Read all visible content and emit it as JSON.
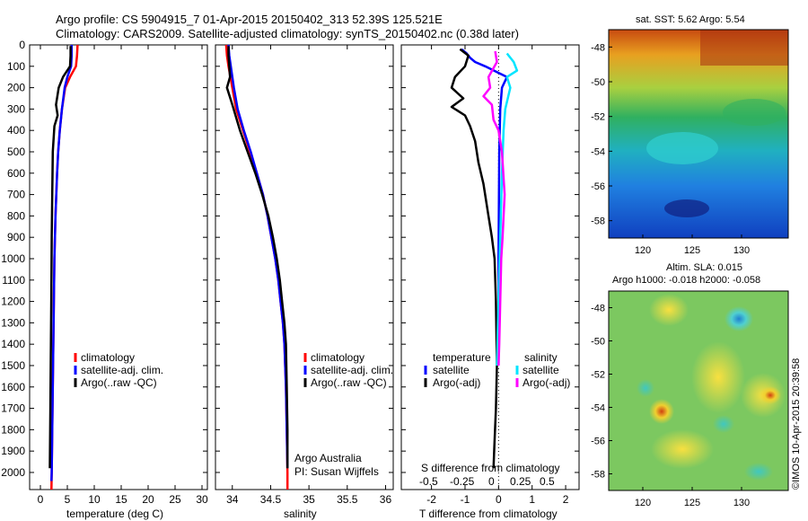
{
  "header": {
    "line1": "Argo profile: CS 5904915_7 01-Apr-2015 20150402_313 52.39S 125.521E",
    "line2": "Climatology: CARS2009. Satellite-adjusted climatology: synTS_20150402.nc (0.38d later)"
  },
  "colors": {
    "climatology": "#ff0000",
    "satellite": "#0000ff",
    "argo": "#000000",
    "argo_s_diff": "#ff00ff",
    "sat_s_diff": "#00e5ff"
  },
  "depth_axis": {
    "ylim": [
      0,
      2080
    ],
    "ticks": [
      0,
      100,
      200,
      300,
      400,
      500,
      600,
      700,
      800,
      900,
      1000,
      1100,
      1200,
      1300,
      1400,
      1500,
      1600,
      1700,
      1800,
      1900,
      2000
    ]
  },
  "panels": {
    "temperature": {
      "xlabel": "temperature (deg C)",
      "xlim": [
        -2,
        31
      ],
      "xticks": [
        0,
        5,
        10,
        15,
        20,
        25,
        30
      ],
      "legend": [
        "climatology",
        "satellite-adj. clim.",
        "Argo(..raw -QC)"
      ]
    },
    "salinity": {
      "xlabel": "salinity",
      "xlim": [
        33.78,
        36.1
      ],
      "xticks": [
        "34",
        "34.5",
        "35",
        "35.5",
        "36"
      ],
      "legend": [
        "climatology",
        "satellite-adj. clim.",
        "Argo(..raw -QC)"
      ],
      "note1": "Argo Australia",
      "note2": "PI: Susan Wijffels"
    },
    "difference": {
      "xlabel": "T difference from climatology",
      "xlim": [
        -2.9,
        2.4
      ],
      "xticks": [
        "-2",
        "-1",
        "0",
        "1",
        "2"
      ],
      "s_label": "S difference from climatology",
      "s_ticks": [
        "-0.5",
        "-0.25",
        "0",
        "0.25",
        "0.5"
      ],
      "legend_t_title": "temperature",
      "legend_t_items": [
        "satellite",
        "Argo(-adj)"
      ],
      "legend_s_title": "salinity",
      "legend_s_items": [
        "satellite",
        "Argo(-adj)"
      ]
    }
  },
  "maps": {
    "sst": {
      "title": "sat. SST: 5.62 Argo: 5.54",
      "yticks": [
        "-48",
        "-50",
        "-52",
        "-54",
        "-56",
        "-58"
      ],
      "xticks": [
        "120",
        "125",
        "130"
      ]
    },
    "sla": {
      "title1": "Altim. SLA: 0.015",
      "title2": "Argo h1000: -0.018 h2000: -0.058",
      "yticks": [
        "-48",
        "-50",
        "-52",
        "-54",
        "-56",
        "-58"
      ],
      "xticks": [
        "120",
        "125",
        "130"
      ]
    },
    "credit": "©IMOS 10-Apr-2015 20:39:58"
  },
  "chart_data": [
    {
      "type": "line",
      "title": "",
      "xlabel": "temperature (deg C)",
      "ylabel": "",
      "xlim": [
        -2,
        31
      ],
      "ylim": [
        2080,
        0
      ],
      "series": [
        {
          "name": "climatology",
          "color": "#ff0000",
          "points": [
            [
              6.9,
              0
            ],
            [
              6.8,
              50
            ],
            [
              6.6,
              100
            ],
            [
              5.5,
              150
            ],
            [
              4.6,
              200
            ],
            [
              4.0,
              300
            ],
            [
              3.6,
              400
            ],
            [
              3.3,
              500
            ],
            [
              3.1,
              600
            ],
            [
              2.95,
              700
            ],
            [
              2.8,
              800
            ],
            [
              2.7,
              900
            ],
            [
              2.6,
              1000
            ],
            [
              2.5,
              1200
            ],
            [
              2.4,
              1400
            ],
            [
              2.3,
              1600
            ],
            [
              2.2,
              1800
            ],
            [
              2.1,
              2000
            ],
            [
              2.05,
              2080
            ]
          ]
        },
        {
          "name": "satellite-adj. clim.",
          "color": "#0000ff",
          "points": [
            [
              5.8,
              0
            ],
            [
              5.8,
              50
            ],
            [
              5.7,
              100
            ],
            [
              5.0,
              150
            ],
            [
              4.5,
              200
            ],
            [
              4.0,
              300
            ],
            [
              3.6,
              400
            ],
            [
              3.3,
              500
            ],
            [
              3.1,
              600
            ],
            [
              2.95,
              700
            ],
            [
              2.8,
              800
            ],
            [
              2.7,
              900
            ],
            [
              2.6,
              1000
            ],
            [
              2.5,
              1200
            ],
            [
              2.4,
              1400
            ],
            [
              2.3,
              1600
            ],
            [
              2.2,
              1800
            ],
            [
              2.1,
              2000
            ],
            [
              2.05,
              2040
            ]
          ]
        },
        {
          "name": "Argo(..raw -QC)",
          "color": "#000000",
          "points": [
            [
              5.6,
              5
            ],
            [
              5.6,
              50
            ],
            [
              5.5,
              100
            ],
            [
              4.2,
              150
            ],
            [
              3.4,
              200
            ],
            [
              2.9,
              280
            ],
            [
              3.2,
              330
            ],
            [
              2.6,
              380
            ],
            [
              2.3,
              500
            ],
            [
              2.2,
              700
            ],
            [
              2.1,
              900
            ],
            [
              2.05,
              1100
            ],
            [
              1.95,
              1400
            ],
            [
              1.85,
              1700
            ],
            [
              1.75,
              1980
            ]
          ]
        }
      ]
    },
    {
      "type": "line",
      "title": "",
      "xlabel": "salinity",
      "ylabel": "",
      "xlim": [
        33.78,
        36.1
      ],
      "ylim": [
        2080,
        0
      ],
      "series": [
        {
          "name": "climatology",
          "color": "#ff0000",
          "points": [
            [
              33.92,
              0
            ],
            [
              33.93,
              50
            ],
            [
              33.95,
              100
            ],
            [
              34.0,
              200
            ],
            [
              34.05,
              300
            ],
            [
              34.14,
              400
            ],
            [
              34.23,
              500
            ],
            [
              34.32,
              600
            ],
            [
              34.4,
              700
            ],
            [
              34.46,
              800
            ],
            [
              34.51,
              900
            ],
            [
              34.56,
              1000
            ],
            [
              34.6,
              1100
            ],
            [
              34.63,
              1200
            ],
            [
              34.66,
              1300
            ],
            [
              34.68,
              1400
            ],
            [
              34.7,
              1600
            ],
            [
              34.71,
              1800
            ],
            [
              34.72,
              2000
            ],
            [
              34.72,
              2080
            ]
          ]
        },
        {
          "name": "satellite-adj. clim.",
          "color": "#0000ff",
          "points": [
            [
              33.95,
              0
            ],
            [
              33.96,
              50
            ],
            [
              33.98,
              100
            ],
            [
              34.02,
              200
            ],
            [
              34.07,
              300
            ],
            [
              34.15,
              400
            ],
            [
              34.24,
              500
            ],
            [
              34.32,
              600
            ],
            [
              34.4,
              700
            ],
            [
              34.46,
              800
            ],
            [
              34.51,
              900
            ],
            [
              34.56,
              1000
            ],
            [
              34.6,
              1100
            ],
            [
              34.63,
              1200
            ],
            [
              34.66,
              1300
            ],
            [
              34.68,
              1400
            ],
            [
              34.7,
              1600
            ],
            [
              34.71,
              1800
            ],
            [
              34.72,
              1980
            ]
          ]
        },
        {
          "name": "Argo(..raw -QC)",
          "color": "#000000",
          "points": [
            [
              33.95,
              5
            ],
            [
              33.95,
              50
            ],
            [
              33.96,
              100
            ],
            [
              33.97,
              150
            ],
            [
              33.93,
              200
            ],
            [
              34.0,
              280
            ],
            [
              34.1,
              400
            ],
            [
              34.2,
              500
            ],
            [
              34.3,
              600
            ],
            [
              34.39,
              700
            ],
            [
              34.47,
              800
            ],
            [
              34.53,
              900
            ],
            [
              34.58,
              1000
            ],
            [
              34.62,
              1100
            ],
            [
              34.65,
              1200
            ],
            [
              34.68,
              1300
            ],
            [
              34.7,
              1400
            ],
            [
              34.71,
              1600
            ],
            [
              34.72,
              1800
            ],
            [
              34.72,
              1980
            ]
          ]
        }
      ]
    },
    {
      "type": "line",
      "title": "",
      "xlabel": "T difference from climatology",
      "ylabel": "",
      "xlim": [
        -2.9,
        2.4
      ],
      "ylim": [
        2080,
        0
      ],
      "series": [
        {
          "name": "temperature satellite",
          "color": "#0000ff",
          "points": [
            [
              -1.1,
              20
            ],
            [
              -0.95,
              40
            ],
            [
              -0.85,
              60
            ],
            [
              -0.7,
              80
            ],
            [
              -0.4,
              100
            ],
            [
              0.25,
              150
            ],
            [
              0.1,
              200
            ],
            [
              0.05,
              300
            ],
            [
              0.02,
              500
            ],
            [
              0.0,
              1000
            ],
            [
              0.0,
              1500
            ]
          ]
        },
        {
          "name": "temperature Argo(-adj)",
          "color": "#000000",
          "points": [
            [
              -1.15,
              20
            ],
            [
              -0.9,
              50
            ],
            [
              -1.0,
              100
            ],
            [
              -1.3,
              150
            ],
            [
              -1.4,
              200
            ],
            [
              -1.05,
              250
            ],
            [
              -1.4,
              290
            ],
            [
              -1.0,
              330
            ],
            [
              -0.85,
              380
            ],
            [
              -0.7,
              450
            ],
            [
              -0.6,
              550
            ],
            [
              -0.45,
              650
            ],
            [
              -0.3,
              800
            ],
            [
              -0.2,
              900
            ],
            [
              -0.12,
              1000
            ],
            [
              -0.08,
              1200
            ],
            [
              -0.05,
              1500
            ],
            [
              -0.08,
              1700
            ],
            [
              -0.12,
              1850
            ],
            [
              -0.15,
              1980
            ]
          ]
        },
        {
          "name": "salinity satellite",
          "color": "#00e5ff",
          "points": [
            [
              0.25,
              40
            ],
            [
              0.45,
              80
            ],
            [
              0.55,
              120
            ],
            [
              0.25,
              150
            ],
            [
              0.35,
              200
            ],
            [
              0.2,
              300
            ],
            [
              0.15,
              400
            ],
            [
              0.1,
              600
            ],
            [
              0.05,
              900
            ],
            [
              0.0,
              1200
            ],
            [
              -0.05,
              1500
            ]
          ]
        },
        {
          "name": "salinity Argo(-adj)",
          "color": "#ff00ff",
          "points": [
            [
              -0.1,
              30
            ],
            [
              -0.05,
              80
            ],
            [
              -0.3,
              150
            ],
            [
              -0.25,
              200
            ],
            [
              -0.45,
              240
            ],
            [
              -0.2,
              280
            ],
            [
              -0.15,
              350
            ],
            [
              0.0,
              400
            ],
            [
              0.1,
              500
            ],
            [
              0.18,
              700
            ],
            [
              0.12,
              900
            ],
            [
              0.08,
              1000
            ],
            [
              0.05,
              1200
            ],
            [
              0.02,
              1400
            ],
            [
              0.0,
              1500
            ]
          ]
        }
      ]
    }
  ]
}
